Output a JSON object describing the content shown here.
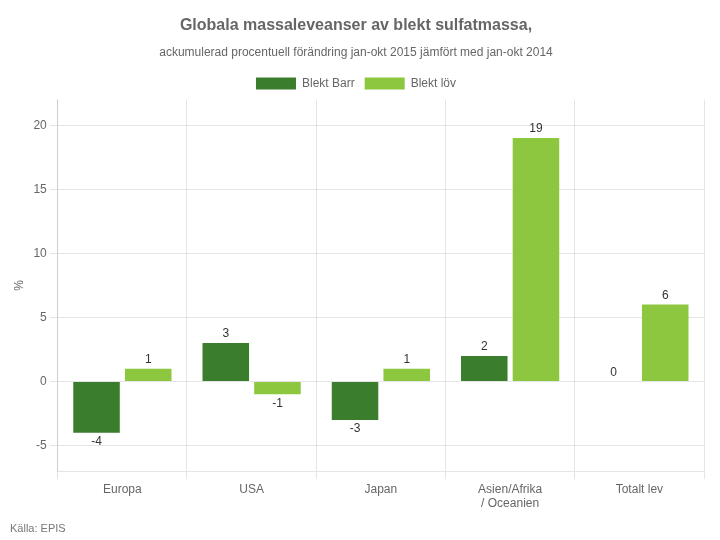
{
  "chart_data": {
    "type": "bar",
    "title": "Globala massaleveanser av blekt sulfatmassa,",
    "subtitle": "ackumulerad procentuell förändring jan-okt 2015 jämfört med jan-okt 2014",
    "source": "Källa: EPIS",
    "categories": [
      "Europa",
      "USA",
      "Japan",
      "Asien/Afrika\n/ Oceanien",
      "Totalt lev"
    ],
    "series": [
      {
        "name": "Blekt Barr",
        "color": "#3a7d2c",
        "values": [
          -4,
          3,
          -3,
          2,
          0
        ]
      },
      {
        "name": "Blekt löv",
        "color": "#8dc63f",
        "values": [
          1,
          -1,
          1,
          19,
          6
        ]
      }
    ],
    "ylabel": "%",
    "ylim": [
      -7,
      22
    ],
    "yticks": [
      -5,
      0,
      5,
      10,
      15,
      20
    ],
    "grid": true,
    "legend": "top",
    "data_labels": true
  }
}
